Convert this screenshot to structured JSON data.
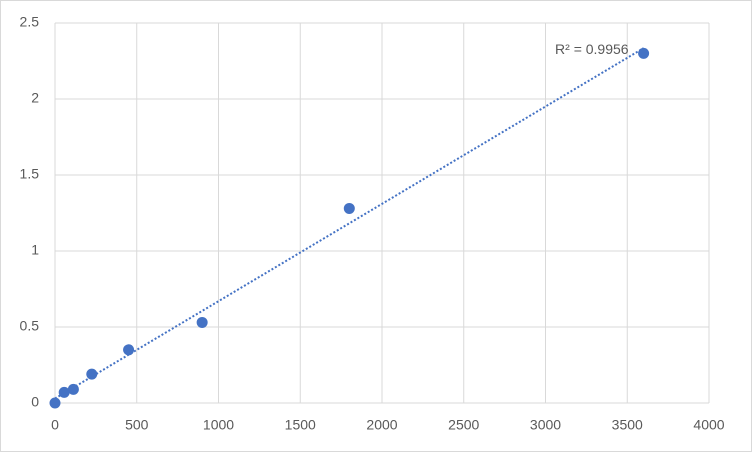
{
  "chart_data": {
    "type": "scatter",
    "annotation": "R² = 0.9956",
    "series": [
      {
        "color": "#4472c4",
        "x": [
          0,
          56.25,
          112.5,
          225,
          450,
          900,
          1800,
          3600
        ],
        "values": [
          0,
          0.07,
          0.09,
          0.19,
          0.35,
          0.53,
          1.28,
          2.3
        ]
      }
    ],
    "trendline": "linear",
    "xlim": [
      0,
      4000
    ],
    "xticks": [
      0,
      500,
      1000,
      1500,
      2000,
      2500,
      3000,
      3500,
      4000
    ],
    "ylim": [
      0,
      2.5
    ],
    "yticks": [
      0,
      0.5,
      1,
      1.5,
      2,
      2.5
    ],
    "grid": true
  }
}
